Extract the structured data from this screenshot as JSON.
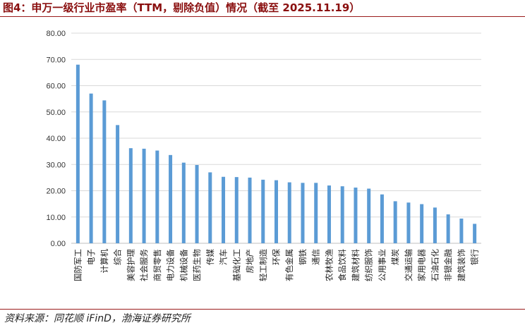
{
  "figure": {
    "title": "图4：申万一级行业市盈率（TTM，剔除负值）情况（截至 2025.11.19）",
    "source": "资料来源：同花顺 iFinD，渤海证券研究所"
  },
  "colors": {
    "bar": "#5b9bd5",
    "title": "#8a0f0f",
    "rule": "#9b1c1c",
    "gridline": "#d9d9d9",
    "axis": "#bfbfbf"
  },
  "chart_data": {
    "type": "bar",
    "title": "",
    "xlabel": "",
    "ylabel": "",
    "ylim": [
      0,
      80
    ],
    "yticks": [
      "0.00",
      "10.00",
      "20.00",
      "30.00",
      "40.00",
      "50.00",
      "60.00",
      "70.00",
      "80.00"
    ],
    "grid": true,
    "legend": "none",
    "categories": [
      "国防军工",
      "电子",
      "计算机",
      "综合",
      "美容护理",
      "社会服务",
      "商贸零售",
      "电力设备",
      "机械设备",
      "医药生物",
      "传媒",
      "汽车",
      "基础化工",
      "房地产",
      "轻工制造",
      "环保",
      "有色金属",
      "钢铁",
      "通信",
      "农林牧渔",
      "食品饮料",
      "建筑材料",
      "纺织服饰",
      "公用事业",
      "煤炭",
      "交通运输",
      "家用电器",
      "石油石化",
      "非银金融",
      "建筑装饰",
      "银行"
    ],
    "values": [
      68.0,
      57.0,
      54.4,
      45.0,
      36.2,
      36.0,
      35.3,
      33.6,
      30.7,
      29.8,
      27.0,
      25.3,
      25.2,
      25.0,
      24.2,
      24.0,
      23.2,
      23.0,
      23.0,
      22.0,
      21.7,
      21.2,
      20.8,
      18.6,
      16.0,
      15.5,
      14.9,
      13.6,
      11.0,
      9.4,
      7.4
    ]
  }
}
